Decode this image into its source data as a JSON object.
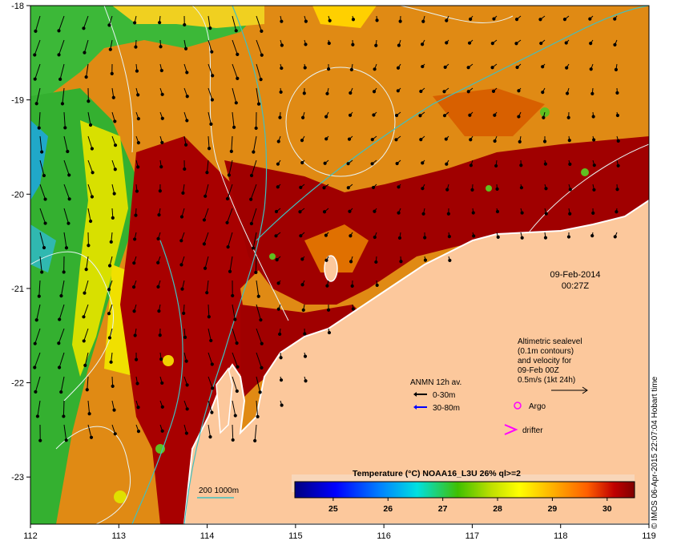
{
  "map": {
    "lon_range": [
      112,
      119
    ],
    "lat_range": [
      -23.5,
      -18
    ],
    "lon_ticks": [
      "112",
      "113",
      "114",
      "115",
      "116",
      "117",
      "118",
      "119"
    ],
    "lat_ticks": [
      "-18",
      "-19",
      "-20",
      "-21",
      "-22",
      "-23"
    ],
    "date": "09-Feb-2014",
    "time": "00:27Z"
  },
  "legend": {
    "sealevel": {
      "line1": "Altimetric sealevel",
      "line2": "(0.1m contours)",
      "line3": "and velocity for",
      "line4": "09-Feb 00Z",
      "line5": "0.5m/s (1kt 24h)"
    },
    "anmn": {
      "title": "ANMN 12h av.",
      "shallow": "0-30m",
      "deep": "30-80m",
      "shallow_color": "#000000",
      "deep_color": "#0000ff"
    },
    "argo_label": "Argo",
    "drifter_label": "drifter",
    "marker_color": "#ff00ff",
    "isobath_label": "200  1000m",
    "isobath_color": "#40c0c0"
  },
  "colorbar": {
    "title": "Temperature (°C) NOAA16_L3U 26% ql>=2",
    "range": [
      24.3,
      30.5
    ],
    "ticks": [
      "25",
      "26",
      "27",
      "28",
      "29",
      "30"
    ]
  },
  "credit": "© IMOS 06-Apr-2015 22:07:04 Hobart time",
  "colors": {
    "land": "#fcc89c",
    "sst_warm": "#a00000",
    "sst_mid": "#e08000",
    "sst_cool": "#40c000"
  }
}
